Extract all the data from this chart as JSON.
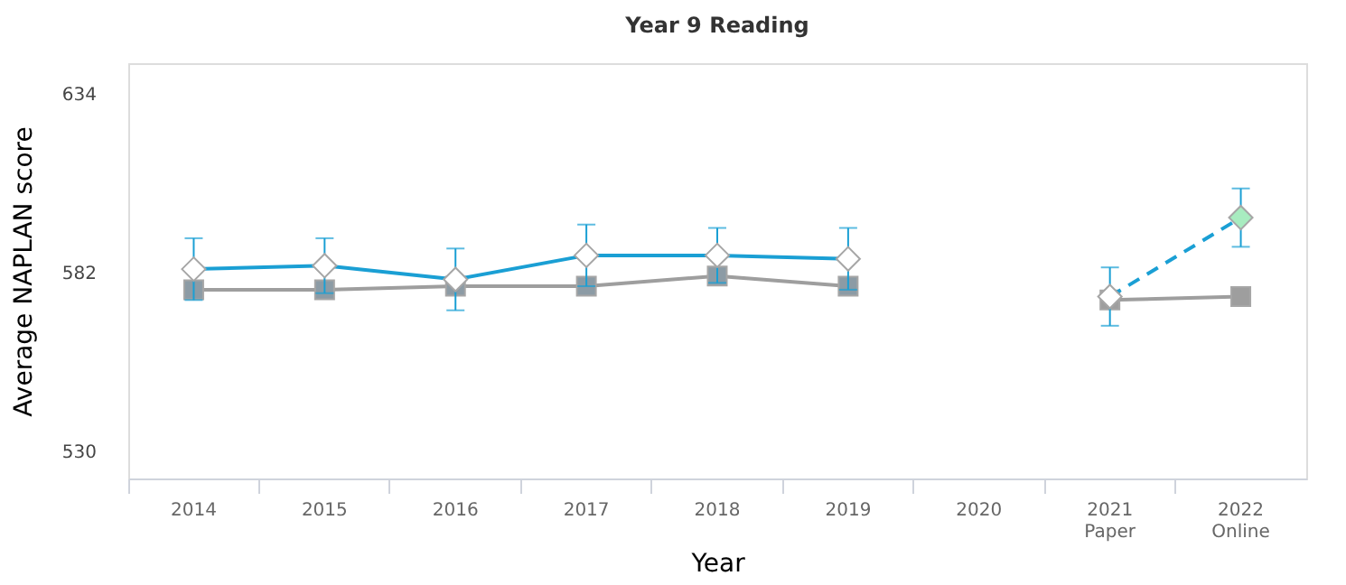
{
  "chart_data": {
    "type": "line",
    "title": "Year 9 Reading",
    "xlabel": "Year",
    "ylabel": "Average NAPLAN score",
    "categories": [
      "2014",
      "2015",
      "2016",
      "2017",
      "2018",
      "2019",
      "2020",
      "2021\nPaper",
      "2022\nOnline"
    ],
    "series": [
      {
        "color": "#9e9e9e",
        "values": [
          577,
          577,
          578,
          578,
          581,
          578,
          null,
          574,
          575
        ],
        "marker": "square",
        "line_style": "solid",
        "colors": [
          "#8c9ba5",
          "#8c9ba5",
          "#8c9ba5",
          "#8c9ba5",
          "#8c9ba5",
          "#8c9ba5",
          null,
          "#9e9e9e",
          "#9e9e9e"
        ]
      },
      {
        "color": "#1a9fd4",
        "values": [
          583,
          584,
          580,
          587,
          587,
          586,
          null,
          null,
          null
        ],
        "errors": [
          9,
          8,
          9,
          9,
          8,
          9,
          null,
          null,
          null
        ],
        "marker": "diamond",
        "line_style": "solid",
        "colors": [
          "#ffffff",
          "#ffffff",
          "#ffffff",
          "#ffffff",
          "#ffffff",
          "#ffffff",
          null,
          null,
          null
        ]
      },
      {
        "color": "#1a9fd4",
        "values": [
          null,
          null,
          null,
          null,
          null,
          null,
          null,
          575,
          598
        ],
        "errors": [
          null,
          null,
          null,
          null,
          null,
          null,
          null,
          8.5,
          8.5
        ],
        "marker": "diamond",
        "line_style": "dashed",
        "colors": [
          null,
          null,
          null,
          null,
          null,
          null,
          null,
          "#ffffff",
          "#a8ecc0"
        ]
      }
    ],
    "ylim": [
      522,
      643
    ],
    "yticks": [
      530,
      582,
      634
    ],
    "grid": false
  }
}
